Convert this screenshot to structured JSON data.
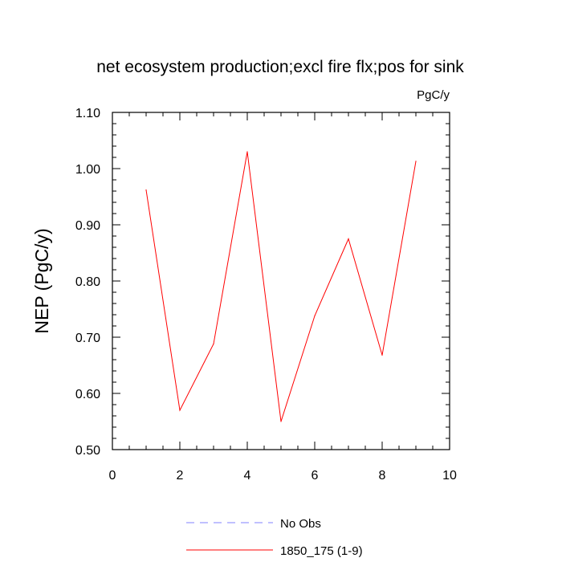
{
  "chart_data": {
    "type": "line",
    "title": "net ecosystem production;excl fire flx;pos for sink",
    "units_label": "PgC/y",
    "ylabel": "NEP  (PgC/y)",
    "xlabel": "",
    "xlim": [
      0,
      10
    ],
    "ylim": [
      0.5,
      1.1
    ],
    "x_ticks": [
      0,
      2,
      4,
      6,
      8,
      10
    ],
    "x_tick_labels": [
      "0",
      "2",
      "4",
      "6",
      "8",
      "10"
    ],
    "y_ticks": [
      0.5,
      0.6,
      0.7,
      0.8,
      0.9,
      1.0,
      1.1
    ],
    "y_tick_labels": [
      "0.50",
      "0.60",
      "0.70",
      "0.80",
      "0.90",
      "1.00",
      "1.10"
    ],
    "grid": false,
    "legend_position": "bottom",
    "series": [
      {
        "name": "1850_175 (1-9)",
        "color": "#ff0000",
        "dash": "solid",
        "x": [
          1,
          2,
          3,
          4,
          5,
          6,
          7,
          8,
          9
        ],
        "y": [
          0.962,
          0.57,
          0.688,
          1.03,
          0.55,
          0.738,
          0.875,
          0.668,
          1.013
        ]
      }
    ],
    "legend": [
      {
        "label": "No Obs",
        "color": "#8080ff",
        "dash": "dashed"
      },
      {
        "label": "1850_175 (1-9)",
        "color": "#ff0000",
        "dash": "solid"
      }
    ]
  }
}
